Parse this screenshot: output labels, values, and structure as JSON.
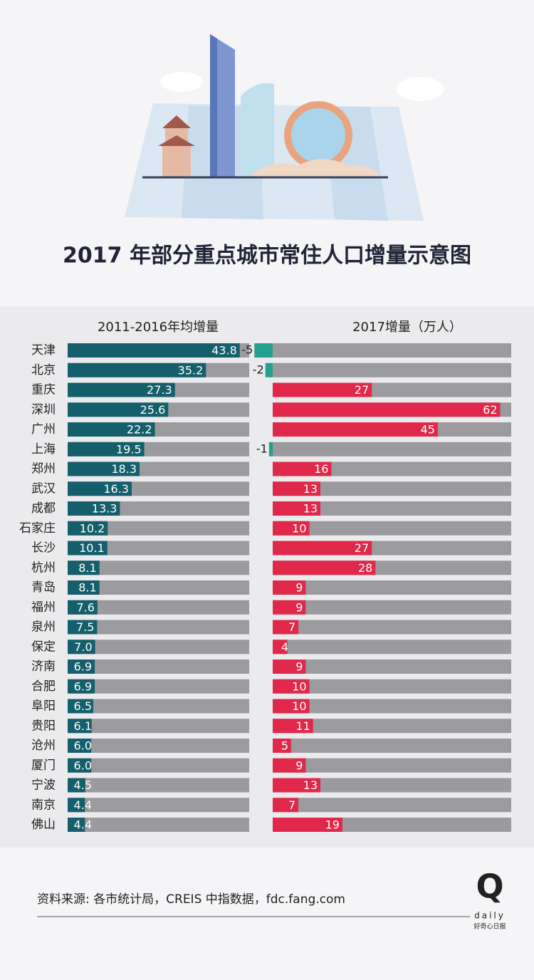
{
  "chart_data": {
    "type": "bar",
    "title": "2017 年部分重点城市常住人口增量示意图",
    "categories": [
      "天津",
      "北京",
      "重庆",
      "深圳",
      "广州",
      "上海",
      "郑州",
      "武汉",
      "成都",
      "石家庄",
      "长沙",
      "杭州",
      "青岛",
      "福州",
      "泉州",
      "保定",
      "济南",
      "合肥",
      "阜阳",
      "贵阳",
      "沧州",
      "厦门",
      "宁波",
      "南京",
      "佛山"
    ],
    "series": [
      {
        "name": "2011-2016年均增量",
        "color": "#145f6b",
        "xlim": [
          0,
          46.2
        ],
        "values": [
          43.8,
          35.2,
          27.3,
          25.6,
          22.2,
          19.5,
          18.3,
          16.3,
          13.3,
          10.2,
          10.1,
          8.1,
          8.1,
          7.6,
          7.5,
          7.0,
          6.9,
          6.9,
          6.5,
          6.1,
          6.0,
          6.0,
          4.5,
          4.4,
          4.4
        ],
        "value_labels": [
          "43.8",
          "35.2",
          "27.3",
          "25.6",
          "22.2",
          "19.5",
          "18.3",
          "16.3",
          "13.3",
          "10.2",
          "10.1",
          "8.1",
          "8.1",
          "7.6",
          "7.5",
          "7.0",
          "6.9",
          "6.9",
          "6.5",
          "6.1",
          "6.0",
          "6.0",
          "4.5",
          "4.4",
          "4.4"
        ]
      },
      {
        "name": "2017增量（万人）",
        "color": "#e0284a",
        "negative_color": "#26a08e",
        "xlim": [
          0,
          65
        ],
        "values": [
          -5,
          -2,
          27,
          62,
          45,
          -1,
          16,
          13,
          13,
          10,
          27,
          28,
          9,
          9,
          7,
          4,
          9,
          10,
          10,
          11,
          5,
          9,
          13,
          7,
          19
        ]
      }
    ],
    "track_color": "#9b9a9f",
    "source": "资料来源: 各市统计局，CREIS 中指数据，fdc.fang.com",
    "logo": {
      "mark": "Q",
      "word": "daily",
      "name": "好奇心日报"
    }
  }
}
